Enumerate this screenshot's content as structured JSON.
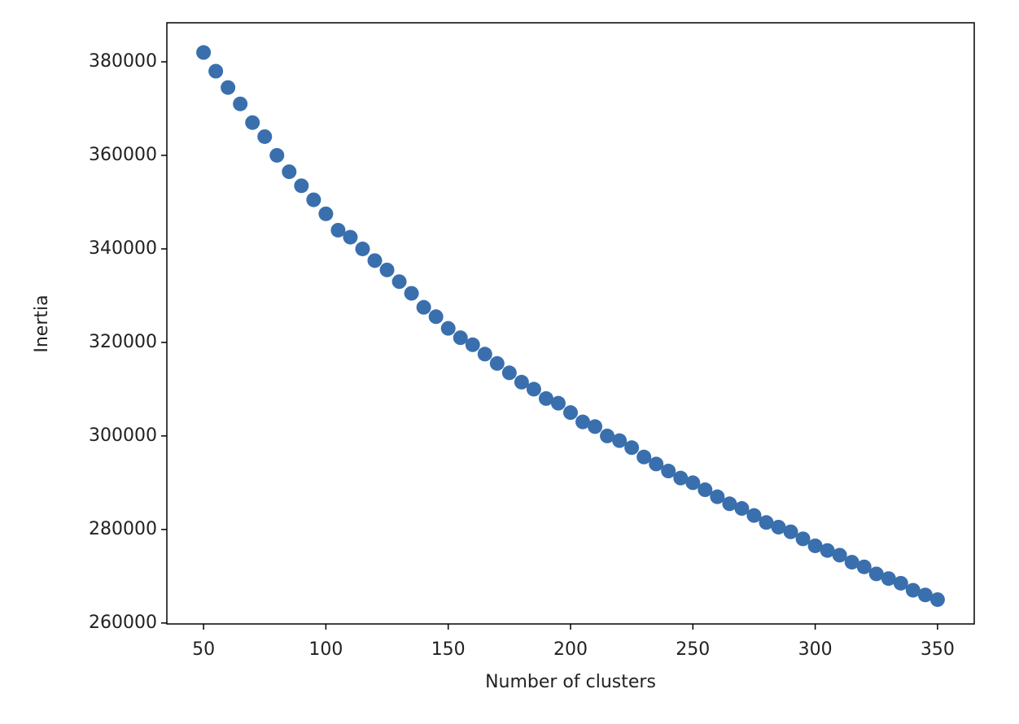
{
  "chart_data": {
    "type": "scatter",
    "xlabel": "Number of clusters",
    "ylabel": "Inertia",
    "x": [
      50,
      55,
      60,
      65,
      70,
      75,
      80,
      85,
      90,
      95,
      100,
      105,
      110,
      115,
      120,
      125,
      130,
      135,
      140,
      145,
      150,
      155,
      160,
      165,
      170,
      175,
      180,
      185,
      190,
      195,
      200,
      205,
      210,
      215,
      220,
      225,
      230,
      235,
      240,
      245,
      250,
      255,
      260,
      265,
      270,
      275,
      280,
      285,
      290,
      295,
      300,
      305,
      310,
      315,
      320,
      325,
      330,
      335,
      340,
      345,
      350
    ],
    "values": [
      382000,
      378000,
      374500,
      371000,
      367000,
      364000,
      360000,
      356500,
      353500,
      350500,
      347500,
      344000,
      342500,
      340000,
      337500,
      335500,
      333000,
      330500,
      327500,
      325500,
      323000,
      321000,
      319500,
      317500,
      315500,
      313500,
      311500,
      310000,
      308000,
      307000,
      305000,
      303000,
      302000,
      300000,
      299000,
      297500,
      295500,
      294000,
      292500,
      291000,
      290000,
      288500,
      287000,
      285500,
      284500,
      283000,
      281500,
      280500,
      279500,
      278000,
      276500,
      275500,
      274500,
      273000,
      272000,
      270500,
      269500,
      268500,
      267000,
      266000,
      265000
    ],
    "color": "#3a6fae",
    "xlim": [
      35,
      365
    ],
    "ylim": [
      259800,
      388350
    ],
    "xticks": [
      50,
      100,
      150,
      200,
      250,
      300,
      350
    ],
    "yticks": [
      260000,
      280000,
      300000,
      320000,
      340000,
      360000,
      380000
    ]
  }
}
